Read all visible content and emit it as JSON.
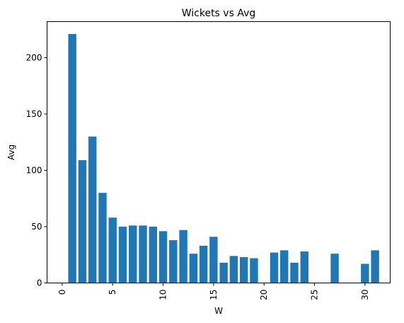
{
  "chart_data": {
    "type": "bar",
    "title": "Wickets vs Avg",
    "xlabel": "W",
    "ylabel": "Avg",
    "xlim": [
      -1.5,
      32.5
    ],
    "ylim": [
      0,
      232
    ],
    "xticks": [
      0,
      5,
      10,
      15,
      20,
      25,
      30
    ],
    "yticks": [
      0,
      50,
      100,
      150,
      200
    ],
    "x_tick_rotation": 90,
    "grid": false,
    "bar_color": "#1f77b4",
    "x": [
      1,
      2,
      3,
      4,
      5,
      6,
      7,
      8,
      9,
      10,
      11,
      12,
      13,
      14,
      15,
      16,
      17,
      18,
      19,
      21,
      22,
      23,
      24,
      27,
      30,
      31
    ],
    "values": [
      221,
      109,
      130,
      80,
      58,
      50,
      51,
      51,
      50,
      46,
      38,
      47,
      26,
      33,
      41,
      18,
      24,
      23,
      22,
      27,
      29,
      18,
      28,
      26,
      17,
      29
    ]
  }
}
